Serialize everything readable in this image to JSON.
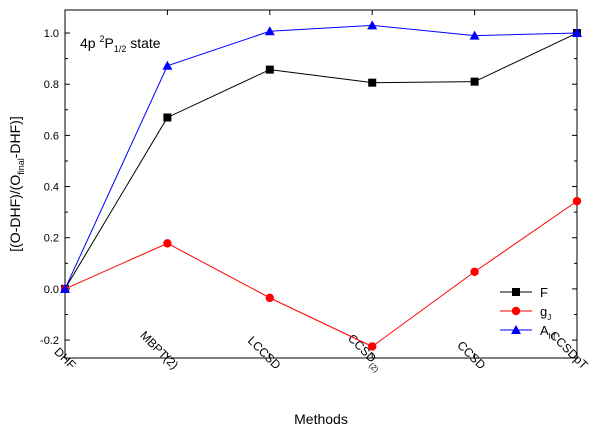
{
  "chart_data": {
    "type": "line",
    "annotation": {
      "prefix": "4p ",
      "sup": "2",
      "main": "P",
      "sub": "1/2",
      "suffix": " state"
    },
    "xlabel": "Methods",
    "ylabel": {
      "before": "[(O-DHF)/(O",
      "sub": "final",
      "after": "-DHF)]"
    },
    "categories": [
      {
        "main": "DHF",
        "sub": ""
      },
      {
        "main": "MBPT(2)",
        "sub": ""
      },
      {
        "main": "LCCSD",
        "sub": ""
      },
      {
        "main": "CCSD",
        "sub": "(2)"
      },
      {
        "main": "CCSD",
        "sub": ""
      },
      {
        "main": "CCSDpT",
        "sub": ""
      }
    ],
    "ylim": [
      -0.27,
      1.09
    ],
    "yticks": [
      {
        "value": -0.2,
        "label": "-0.2"
      },
      {
        "value": 0.0,
        "label": "0.0"
      },
      {
        "value": 0.2,
        "label": "0.2"
      },
      {
        "value": 0.4,
        "label": "0.4"
      },
      {
        "value": 0.6,
        "label": "0.6"
      },
      {
        "value": 0.8,
        "label": "0.8"
      },
      {
        "value": 1.0,
        "label": "1.0"
      }
    ],
    "grid": false,
    "legend": "bottom-right",
    "series": [
      {
        "name": "F",
        "sub": "",
        "color": "#000000",
        "marker": "square",
        "values": [
          0.0,
          0.67,
          0.857,
          0.806,
          0.81,
          1.0
        ]
      },
      {
        "name": "g",
        "sub": "J",
        "color": "#ff0000",
        "marker": "circle",
        "values": [
          0.0,
          0.178,
          -0.035,
          -0.225,
          0.067,
          0.343
        ]
      },
      {
        "name": "A",
        "sub": "hf",
        "color": "#0000ff",
        "marker": "triangle",
        "values": [
          0.0,
          0.872,
          1.007,
          1.03,
          0.99,
          1.0
        ]
      }
    ]
  }
}
